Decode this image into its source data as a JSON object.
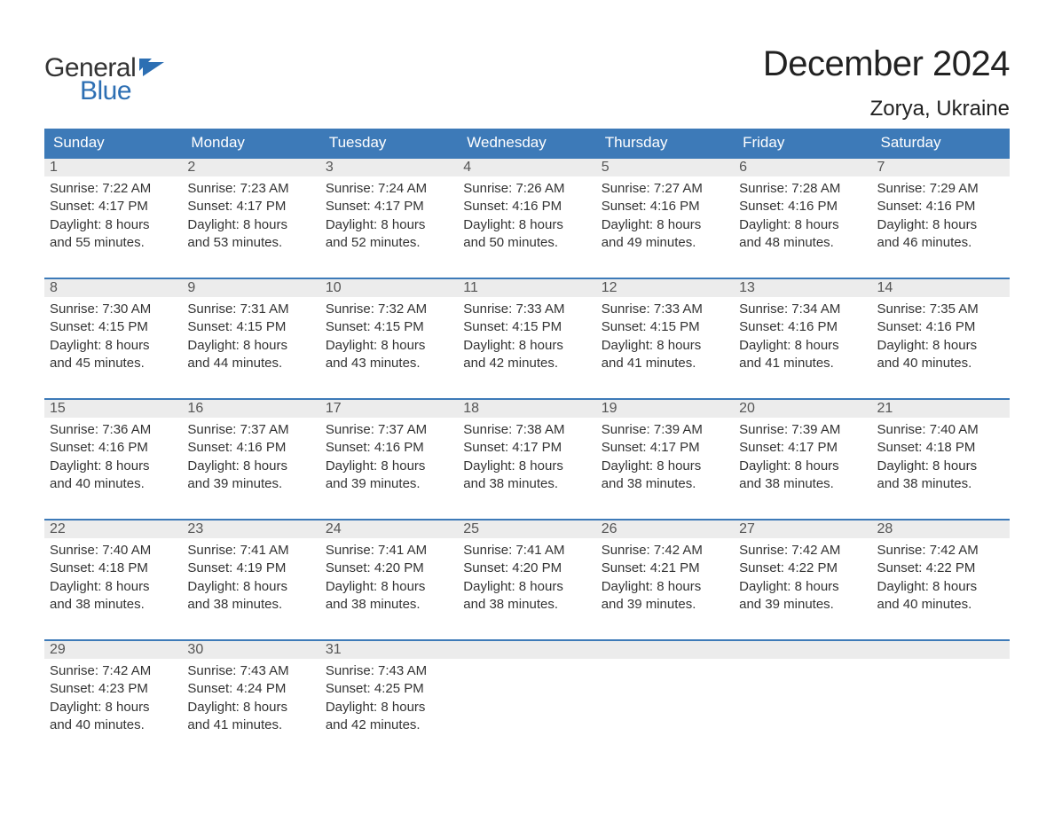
{
  "logo": {
    "text_general": "General",
    "text_blue": "Blue",
    "flag_color": "#2d6fb3"
  },
  "header": {
    "month_title": "December 2024",
    "location": "Zorya, Ukraine"
  },
  "colors": {
    "header_bg": "#3d7ab8",
    "header_text": "#ffffff",
    "week_divider": "#3d7ab8",
    "daynum_bg": "#ececec",
    "body_text": "#333333",
    "page_bg": "#ffffff"
  },
  "weekdays": [
    "Sunday",
    "Monday",
    "Tuesday",
    "Wednesday",
    "Thursday",
    "Friday",
    "Saturday"
  ],
  "weeks": [
    [
      {
        "n": "1",
        "sunrise": "Sunrise: 7:22 AM",
        "sunset": "Sunset: 4:17 PM",
        "d1": "Daylight: 8 hours",
        "d2": "and 55 minutes."
      },
      {
        "n": "2",
        "sunrise": "Sunrise: 7:23 AM",
        "sunset": "Sunset: 4:17 PM",
        "d1": "Daylight: 8 hours",
        "d2": "and 53 minutes."
      },
      {
        "n": "3",
        "sunrise": "Sunrise: 7:24 AM",
        "sunset": "Sunset: 4:17 PM",
        "d1": "Daylight: 8 hours",
        "d2": "and 52 minutes."
      },
      {
        "n": "4",
        "sunrise": "Sunrise: 7:26 AM",
        "sunset": "Sunset: 4:16 PM",
        "d1": "Daylight: 8 hours",
        "d2": "and 50 minutes."
      },
      {
        "n": "5",
        "sunrise": "Sunrise: 7:27 AM",
        "sunset": "Sunset: 4:16 PM",
        "d1": "Daylight: 8 hours",
        "d2": "and 49 minutes."
      },
      {
        "n": "6",
        "sunrise": "Sunrise: 7:28 AM",
        "sunset": "Sunset: 4:16 PM",
        "d1": "Daylight: 8 hours",
        "d2": "and 48 minutes."
      },
      {
        "n": "7",
        "sunrise": "Sunrise: 7:29 AM",
        "sunset": "Sunset: 4:16 PM",
        "d1": "Daylight: 8 hours",
        "d2": "and 46 minutes."
      }
    ],
    [
      {
        "n": "8",
        "sunrise": "Sunrise: 7:30 AM",
        "sunset": "Sunset: 4:15 PM",
        "d1": "Daylight: 8 hours",
        "d2": "and 45 minutes."
      },
      {
        "n": "9",
        "sunrise": "Sunrise: 7:31 AM",
        "sunset": "Sunset: 4:15 PM",
        "d1": "Daylight: 8 hours",
        "d2": "and 44 minutes."
      },
      {
        "n": "10",
        "sunrise": "Sunrise: 7:32 AM",
        "sunset": "Sunset: 4:15 PM",
        "d1": "Daylight: 8 hours",
        "d2": "and 43 minutes."
      },
      {
        "n": "11",
        "sunrise": "Sunrise: 7:33 AM",
        "sunset": "Sunset: 4:15 PM",
        "d1": "Daylight: 8 hours",
        "d2": "and 42 minutes."
      },
      {
        "n": "12",
        "sunrise": "Sunrise: 7:33 AM",
        "sunset": "Sunset: 4:15 PM",
        "d1": "Daylight: 8 hours",
        "d2": "and 41 minutes."
      },
      {
        "n": "13",
        "sunrise": "Sunrise: 7:34 AM",
        "sunset": "Sunset: 4:16 PM",
        "d1": "Daylight: 8 hours",
        "d2": "and 41 minutes."
      },
      {
        "n": "14",
        "sunrise": "Sunrise: 7:35 AM",
        "sunset": "Sunset: 4:16 PM",
        "d1": "Daylight: 8 hours",
        "d2": "and 40 minutes."
      }
    ],
    [
      {
        "n": "15",
        "sunrise": "Sunrise: 7:36 AM",
        "sunset": "Sunset: 4:16 PM",
        "d1": "Daylight: 8 hours",
        "d2": "and 40 minutes."
      },
      {
        "n": "16",
        "sunrise": "Sunrise: 7:37 AM",
        "sunset": "Sunset: 4:16 PM",
        "d1": "Daylight: 8 hours",
        "d2": "and 39 minutes."
      },
      {
        "n": "17",
        "sunrise": "Sunrise: 7:37 AM",
        "sunset": "Sunset: 4:16 PM",
        "d1": "Daylight: 8 hours",
        "d2": "and 39 minutes."
      },
      {
        "n": "18",
        "sunrise": "Sunrise: 7:38 AM",
        "sunset": "Sunset: 4:17 PM",
        "d1": "Daylight: 8 hours",
        "d2": "and 38 minutes."
      },
      {
        "n": "19",
        "sunrise": "Sunrise: 7:39 AM",
        "sunset": "Sunset: 4:17 PM",
        "d1": "Daylight: 8 hours",
        "d2": "and 38 minutes."
      },
      {
        "n": "20",
        "sunrise": "Sunrise: 7:39 AM",
        "sunset": "Sunset: 4:17 PM",
        "d1": "Daylight: 8 hours",
        "d2": "and 38 minutes."
      },
      {
        "n": "21",
        "sunrise": "Sunrise: 7:40 AM",
        "sunset": "Sunset: 4:18 PM",
        "d1": "Daylight: 8 hours",
        "d2": "and 38 minutes."
      }
    ],
    [
      {
        "n": "22",
        "sunrise": "Sunrise: 7:40 AM",
        "sunset": "Sunset: 4:18 PM",
        "d1": "Daylight: 8 hours",
        "d2": "and 38 minutes."
      },
      {
        "n": "23",
        "sunrise": "Sunrise: 7:41 AM",
        "sunset": "Sunset: 4:19 PM",
        "d1": "Daylight: 8 hours",
        "d2": "and 38 minutes."
      },
      {
        "n": "24",
        "sunrise": "Sunrise: 7:41 AM",
        "sunset": "Sunset: 4:20 PM",
        "d1": "Daylight: 8 hours",
        "d2": "and 38 minutes."
      },
      {
        "n": "25",
        "sunrise": "Sunrise: 7:41 AM",
        "sunset": "Sunset: 4:20 PM",
        "d1": "Daylight: 8 hours",
        "d2": "and 38 minutes."
      },
      {
        "n": "26",
        "sunrise": "Sunrise: 7:42 AM",
        "sunset": "Sunset: 4:21 PM",
        "d1": "Daylight: 8 hours",
        "d2": "and 39 minutes."
      },
      {
        "n": "27",
        "sunrise": "Sunrise: 7:42 AM",
        "sunset": "Sunset: 4:22 PM",
        "d1": "Daylight: 8 hours",
        "d2": "and 39 minutes."
      },
      {
        "n": "28",
        "sunrise": "Sunrise: 7:42 AM",
        "sunset": "Sunset: 4:22 PM",
        "d1": "Daylight: 8 hours",
        "d2": "and 40 minutes."
      }
    ],
    [
      {
        "n": "29",
        "sunrise": "Sunrise: 7:42 AM",
        "sunset": "Sunset: 4:23 PM",
        "d1": "Daylight: 8 hours",
        "d2": "and 40 minutes."
      },
      {
        "n": "30",
        "sunrise": "Sunrise: 7:43 AM",
        "sunset": "Sunset: 4:24 PM",
        "d1": "Daylight: 8 hours",
        "d2": "and 41 minutes."
      },
      {
        "n": "31",
        "sunrise": "Sunrise: 7:43 AM",
        "sunset": "Sunset: 4:25 PM",
        "d1": "Daylight: 8 hours",
        "d2": "and 42 minutes."
      },
      {
        "n": "",
        "empty": true
      },
      {
        "n": "",
        "empty": true
      },
      {
        "n": "",
        "empty": true
      },
      {
        "n": "",
        "empty": true
      }
    ]
  ]
}
